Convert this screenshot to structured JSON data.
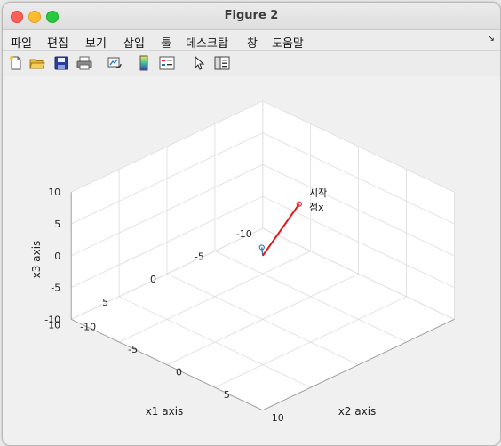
{
  "window": {
    "title": "Figure 2"
  },
  "menu": [
    "파일",
    "편집",
    "보기",
    "삽입",
    "툴",
    "데스크탑",
    "창",
    "도움말"
  ],
  "toolbar_icons": [
    "new-figure-icon",
    "open-file-icon",
    "save-icon",
    "print-icon",
    "link-plot-icon",
    "colorbar-icon",
    "legend-icon",
    "pointer-icon",
    "property-inspector-icon"
  ],
  "chart_data": {
    "type": "line",
    "projection": "3d",
    "xlabel": "x1 axis",
    "ylabel": "x2 axis",
    "zlabel": "x3 axis",
    "xlim": [
      -10,
      10
    ],
    "ylim": [
      -10,
      10
    ],
    "zlim": [
      -10,
      10
    ],
    "xticks": [
      "-10",
      "-5",
      "0",
      "5",
      "10"
    ],
    "yticks": [
      "-10",
      "-5",
      "0",
      "5",
      "10"
    ],
    "zticks": [
      "-10",
      "-5",
      "0",
      "5",
      "10"
    ],
    "grid": true,
    "annotation": {
      "line1": "시작",
      "line2": "점x"
    },
    "colors": {
      "red": "#e8141a",
      "blue": "#1f6fb8",
      "grid": "#dcdcdc",
      "axis": "#9a9a9a"
    }
  }
}
